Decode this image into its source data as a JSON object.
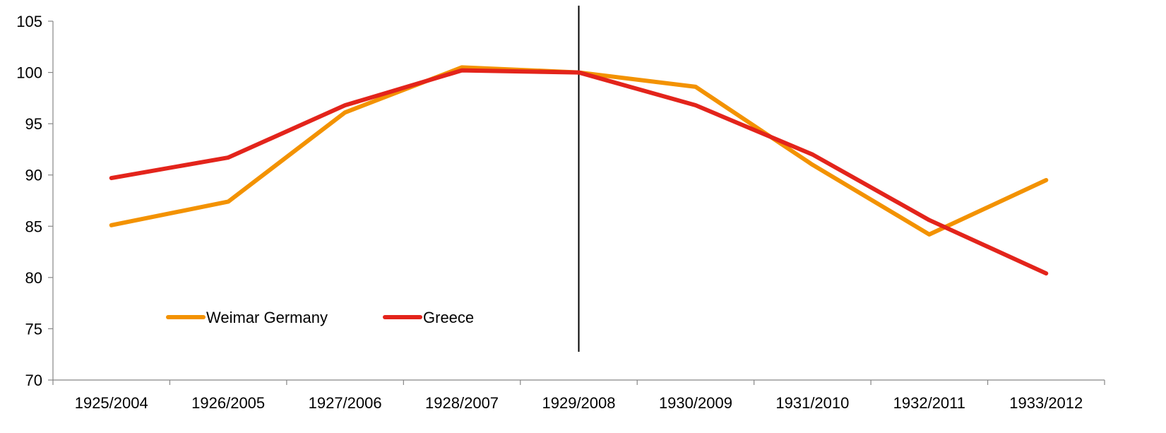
{
  "chart_data": {
    "type": "line",
    "categories": [
      "1925/2004",
      "1926/2005",
      "1927/2006",
      "1928/2007",
      "1929/2008",
      "1930/2009",
      "1931/2010",
      "1932/2011",
      "1933/2012"
    ],
    "series": [
      {
        "name": "Weimar Germany",
        "color": "#F39200",
        "values": [
          85.1,
          87.4,
          96.1,
          100.5,
          100.0,
          98.6,
          91.0,
          84.2,
          89.5
        ]
      },
      {
        "name": "Greece",
        "color": "#E3241B",
        "values": [
          89.7,
          91.7,
          96.8,
          100.2,
          100.0,
          96.8,
          92.0,
          85.6,
          80.4
        ]
      }
    ],
    "ylim": [
      70,
      105
    ],
    "yticks": [
      70,
      75,
      80,
      85,
      90,
      95,
      100,
      105
    ],
    "vertical_marker_category": "1929/2008",
    "legend_position": "bottom-left",
    "grid": false,
    "title": "",
    "xlabel": "",
    "ylabel": ""
  }
}
